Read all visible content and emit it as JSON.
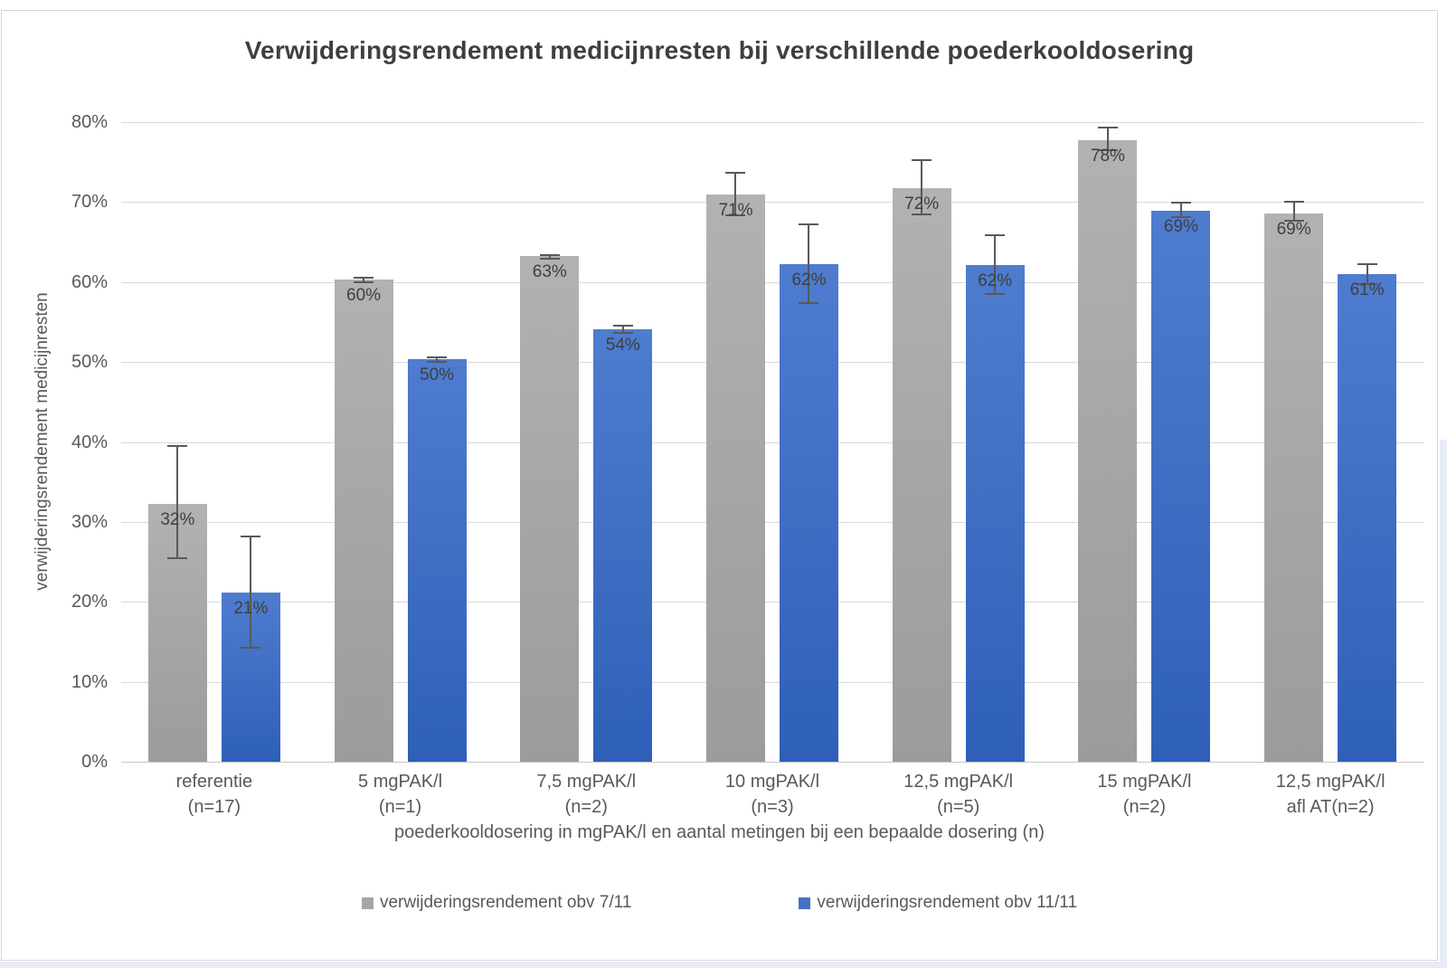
{
  "page": {
    "background_color": "#ffffff",
    "outside_strip_color": "#e7ebf7",
    "frame_border_color": "#d6d6d6"
  },
  "chart_data": {
    "type": "bar",
    "title": "Verwijderingsrendement medicijnresten bij verschillende poederkooldosering",
    "xlabel": "poederkooldosering in mgPAK/l en aantal metingen bij een bepaalde dosering (n)",
    "ylabel": "verwijderingsrendement medicijnresten",
    "ylim": [
      0,
      80
    ],
    "yticks": [
      "0%",
      "10%",
      "20%",
      "30%",
      "40%",
      "50%",
      "60%",
      "70%",
      "80%"
    ],
    "grid": true,
    "legend_position": "bottom",
    "categories": [
      {
        "label": "referentie",
        "sub": "(n=17)"
      },
      {
        "label": "5 mgPAK/l",
        "sub": "(n=1)"
      },
      {
        "label": "7,5 mgPAK/l",
        "sub": "(n=2)"
      },
      {
        "label": "10 mgPAK/l",
        "sub": "(n=3)"
      },
      {
        "label": "12,5 mgPAK/l",
        "sub": "(n=5)"
      },
      {
        "label": "15 mgPAK/l",
        "sub": "(n=2)"
      },
      {
        "label": "12,5 mgPAK/l",
        "sub": "afl AT(n=2)"
      }
    ],
    "series": [
      {
        "name": "verwijderingsrendement obv 7/11",
        "legend_color": "#a6a6a6",
        "values": [
          32.3,
          60.3,
          63.2,
          70.9,
          71.7,
          77.7,
          68.6
        ],
        "labels": [
          "32%",
          "60%",
          "63%",
          "71%",
          "72%",
          "78%",
          "69%"
        ],
        "error_low": [
          25.4,
          59.9,
          62.8,
          68.2,
          68.3,
          76.4,
          67.6
        ],
        "error_high": [
          39.6,
          60.7,
          63.5,
          73.8,
          75.4,
          79.4,
          70.1
        ]
      },
      {
        "name": "verwijderingsrendement obv 11/11",
        "legend_color": "#4472c4",
        "values": [
          21.2,
          50.3,
          54.1,
          62.2,
          62.1,
          68.9,
          61.0
        ],
        "labels": [
          "21%",
          "50%",
          "54%",
          "62%",
          "62%",
          "69%",
          "61%"
        ],
        "error_low": [
          14.1,
          49.9,
          53.5,
          57.2,
          58.4,
          68.0,
          59.6
        ],
        "error_high": [
          28.3,
          50.7,
          54.6,
          67.3,
          66.0,
          70.0,
          62.4
        ]
      }
    ]
  }
}
